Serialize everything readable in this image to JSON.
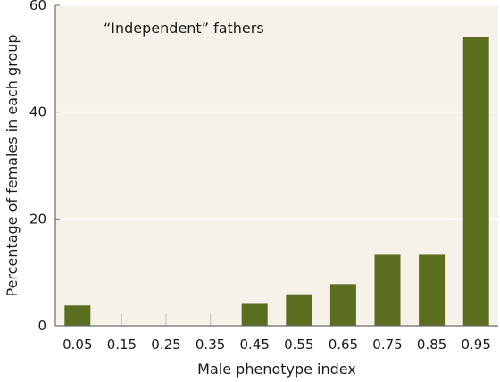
{
  "chart_data": {
    "type": "bar",
    "title": "",
    "annotation": "“Independent” fathers",
    "xlabel": "Male phenotype index",
    "ylabel": "Percentage of females in each group",
    "categories": [
      "0.05",
      "0.15",
      "0.25",
      "0.35",
      "0.45",
      "0.55",
      "0.65",
      "0.75",
      "0.85",
      "0.95"
    ],
    "values": [
      3.8,
      0,
      0,
      0,
      4.1,
      5.9,
      7.8,
      13.3,
      13.3,
      54.0
    ],
    "yticks": [
      0,
      20,
      40,
      60
    ],
    "ylim": [
      0,
      60
    ],
    "grid": true,
    "colors": {
      "bar": "#5b6e1f",
      "plot_background": "#f6f2ea",
      "gridline": "#ffffff",
      "axis": "#6b6b6b"
    }
  }
}
